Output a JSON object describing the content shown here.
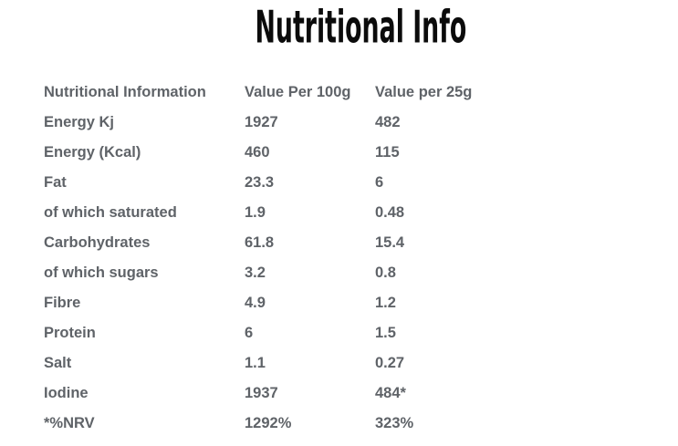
{
  "title": "Nutritional Info",
  "chart_data": {
    "type": "table",
    "title": "Nutritional Info",
    "columns": [
      "Nutritional Information",
      "Value Per 100g",
      "Value per 25g"
    ],
    "rows": [
      [
        "Energy Kj",
        "1927",
        "482"
      ],
      [
        "Energy (Kcal)",
        "460",
        "115"
      ],
      [
        "Fat",
        "23.3",
        "6"
      ],
      [
        "of which saturated",
        "1.9",
        "0.48"
      ],
      [
        "Carbohydrates",
        "61.8",
        "15.4"
      ],
      [
        "of which sugars",
        "3.2",
        "0.8"
      ],
      [
        "Fibre",
        "4.9",
        "1.2"
      ],
      [
        "Protein",
        "6",
        "1.5"
      ],
      [
        "Salt",
        "1.1",
        "0.27"
      ],
      [
        "Iodine",
        "1937",
        "484*"
      ],
      [
        "*%NRV",
        "1292%",
        "323%"
      ]
    ],
    "footnote_marker": "*%NRV"
  },
  "colors": {
    "background": "#ffffff",
    "title_text": "#0b0b0b",
    "table_text": "#5f6368"
  }
}
